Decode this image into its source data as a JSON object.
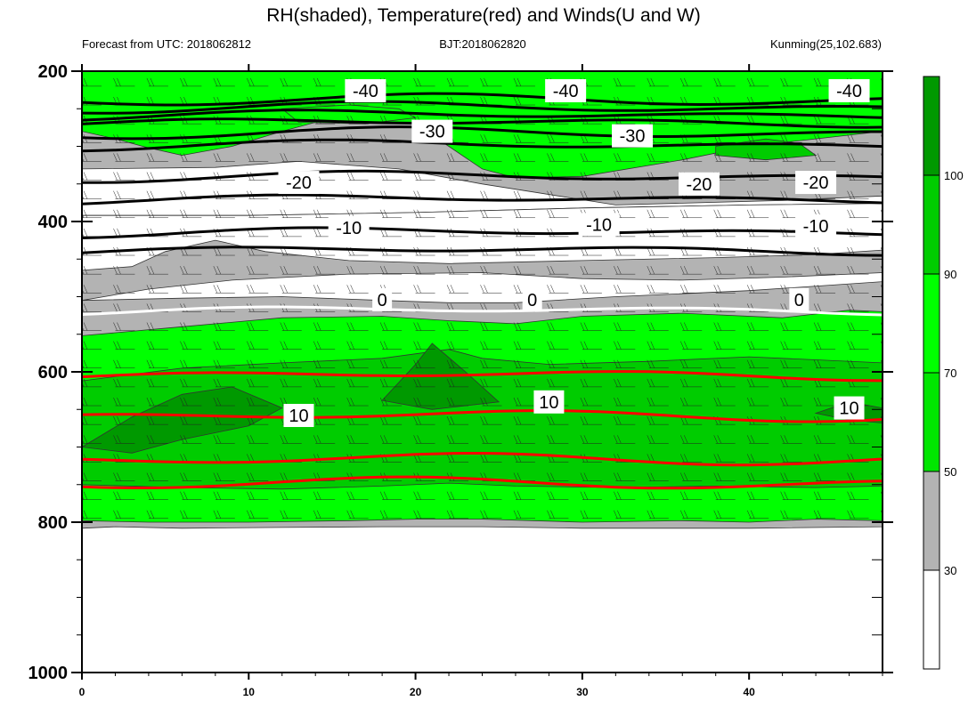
{
  "title": "RH(shaded), Temperature(red) and Winds(U and W)",
  "left_subtitle": "Forecast from UTC: 2018062812",
  "center_subtitle": "BJT:2018062820",
  "right_subtitle": "Kunming(25,102.683)",
  "chart_data": {
    "type": "heatmap",
    "description_fields": "RH shaded, temperature contours, wind barbs",
    "x_ticks": [
      0,
      10,
      20,
      30,
      40
    ],
    "xlim": [
      0,
      48
    ],
    "y_ticks": [
      200,
      400,
      600,
      800,
      1000
    ],
    "ylim": [
      1000,
      200
    ],
    "colorbar": {
      "levels": [
        30,
        50,
        70,
        90,
        100
      ],
      "colors": [
        "#ffffff",
        "#b3b3b3",
        "#00e600",
        "#00ff00",
        "#00cc00",
        "#009900"
      ]
    },
    "rh_fields": [
      {
        "level": "30",
        "color": "#b3b3b3",
        "poly": [
          [
            0,
            808
          ],
          [
            2,
            806
          ],
          [
            6,
            808
          ],
          [
            12,
            807
          ],
          [
            18,
            806
          ],
          [
            24,
            806
          ],
          [
            30,
            808
          ],
          [
            40,
            808
          ],
          [
            48,
            806
          ],
          [
            48,
            200
          ],
          [
            40,
            200
          ],
          [
            32,
            200
          ],
          [
            24,
            200
          ],
          [
            20,
            200
          ],
          [
            14,
            200
          ],
          [
            8,
            200
          ],
          [
            0,
            200
          ]
        ]
      },
      {
        "level": "white-gap-1",
        "color": "#ffffff",
        "poly": [
          [
            0,
            330
          ],
          [
            8,
            328
          ],
          [
            13,
            320
          ],
          [
            19,
            330
          ],
          [
            24,
            350
          ],
          [
            32,
            378
          ],
          [
            42,
            372
          ],
          [
            48,
            366
          ],
          [
            48,
            376
          ],
          [
            40,
            378
          ],
          [
            30,
            382
          ],
          [
            20,
            388
          ],
          [
            10,
            392
          ],
          [
            0,
            392
          ]
        ]
      },
      {
        "level": "white-gap-2",
        "color": "#ffffff",
        "poly": [
          [
            0,
            392
          ],
          [
            10,
            392
          ],
          [
            20,
            388
          ],
          [
            30,
            382
          ],
          [
            40,
            378
          ],
          [
            48,
            376
          ],
          [
            48,
            438
          ],
          [
            44,
            444
          ],
          [
            38,
            448
          ],
          [
            30,
            452
          ],
          [
            22,
            456
          ],
          [
            16,
            452
          ],
          [
            11,
            440
          ],
          [
            8,
            425
          ],
          [
            5,
            440
          ],
          [
            3,
            460
          ],
          [
            0,
            465
          ]
        ]
      },
      {
        "level": "white-gap-3",
        "color": "#ffffff",
        "poly": [
          [
            0,
            505
          ],
          [
            4,
            490
          ],
          [
            9,
            478
          ],
          [
            16,
            470
          ],
          [
            24,
            468
          ],
          [
            30,
            476
          ],
          [
            36,
            478
          ],
          [
            42,
            474
          ],
          [
            48,
            468
          ],
          [
            48,
            480
          ],
          [
            40,
            492
          ],
          [
            32,
            500
          ],
          [
            26,
            508
          ],
          [
            22,
            508
          ],
          [
            18,
            505
          ],
          [
            12,
            500
          ],
          [
            6,
            502
          ]
        ]
      },
      {
        "level": "white-spot",
        "color": "#ffffff",
        "poly": [
          [
            2,
            258
          ],
          [
            4,
            250
          ],
          [
            6,
            258
          ],
          [
            4,
            264
          ]
        ]
      },
      {
        "level": "70",
        "color": "#00ff00",
        "poly": [
          [
            0,
            552
          ],
          [
            6,
            540
          ],
          [
            12,
            528
          ],
          [
            18,
            526
          ],
          [
            22,
            532
          ],
          [
            26,
            536
          ],
          [
            30,
            526
          ],
          [
            36,
            522
          ],
          [
            42,
            528
          ],
          [
            46,
            518
          ],
          [
            48,
            520
          ],
          [
            48,
            798
          ],
          [
            44,
            796
          ],
          [
            40,
            800
          ],
          [
            36,
            798
          ],
          [
            30,
            800
          ],
          [
            24,
            796
          ],
          [
            20,
            796
          ],
          [
            16,
            798
          ],
          [
            10,
            800
          ],
          [
            4,
            800
          ],
          [
            0,
            798
          ]
        ]
      },
      {
        "level": "70-upper",
        "color": "#00ff00",
        "poly": [
          [
            0,
            200
          ],
          [
            24,
            200
          ],
          [
            48,
            200
          ],
          [
            48,
            280
          ],
          [
            44,
            290
          ],
          [
            40,
            300
          ],
          [
            36,
            318
          ],
          [
            30,
            340
          ],
          [
            26,
            342
          ],
          [
            24,
            330
          ],
          [
            22,
            300
          ],
          [
            20,
            270
          ],
          [
            14,
            268
          ],
          [
            12,
            280
          ],
          [
            9,
            300
          ],
          [
            6,
            312
          ],
          [
            4,
            302
          ],
          [
            2,
            290
          ],
          [
            0,
            280
          ]
        ]
      },
      {
        "level": "70-blob",
        "color": "#00ff00",
        "poly": [
          [
            12,
            250
          ],
          [
            16,
            245
          ],
          [
            19,
            250
          ],
          [
            20,
            262
          ],
          [
            17,
            270
          ],
          [
            13,
            268
          ]
        ]
      },
      {
        "level": "90",
        "color": "#00cc00",
        "poly": [
          [
            0,
            612
          ],
          [
            6,
            595
          ],
          [
            12,
            588
          ],
          [
            18,
            582
          ],
          [
            22,
            570
          ],
          [
            24,
            582
          ],
          [
            28,
            590
          ],
          [
            34,
            586
          ],
          [
            40,
            580
          ],
          [
            48,
            588
          ],
          [
            48,
            752
          ],
          [
            44,
            754
          ],
          [
            38,
            752
          ],
          [
            32,
            754
          ],
          [
            26,
            752
          ],
          [
            22,
            748
          ],
          [
            18,
            752
          ],
          [
            12,
            756
          ],
          [
            6,
            754
          ],
          [
            0,
            750
          ]
        ]
      },
      {
        "level": "90-upper",
        "color": "#00cc00",
        "poly": [
          [
            38,
            300
          ],
          [
            41,
            290
          ],
          [
            43,
            296
          ],
          [
            44,
            312
          ],
          [
            41,
            318
          ],
          [
            38,
            312
          ]
        ]
      },
      {
        "level": "100-a",
        "color": "#009900",
        "poly": [
          [
            0,
            700
          ],
          [
            3,
            660
          ],
          [
            6,
            630
          ],
          [
            9,
            620
          ],
          [
            12,
            648
          ],
          [
            10,
            672
          ],
          [
            6,
            690
          ],
          [
            3,
            708
          ]
        ]
      },
      {
        "level": "100-b",
        "color": "#009900",
        "poly": [
          [
            18,
            638
          ],
          [
            20,
            590
          ],
          [
            21,
            562
          ],
          [
            23,
            600
          ],
          [
            25,
            640
          ],
          [
            21,
            650
          ]
        ]
      },
      {
        "level": "100-c",
        "color": "#009900",
        "poly": [
          [
            44,
            655
          ],
          [
            46,
            640
          ],
          [
            48,
            648
          ],
          [
            48,
            668
          ],
          [
            46,
            664
          ]
        ]
      }
    ],
    "temperature_contours": [
      {
        "value": -40,
        "color": "#000000",
        "label_positions": [
          [
            17,
            226
          ],
          [
            29,
            226
          ],
          [
            46,
            226
          ]
        ],
        "y_levels": [
          238,
          248,
          258,
          268
        ]
      },
      {
        "value": -30,
        "color": "#000000",
        "label_positions": [
          [
            21,
            280
          ],
          [
            33,
            286
          ]
        ],
        "y_levels": [
          282,
          298
        ]
      },
      {
        "value": -20,
        "color": "#000000",
        "label_positions": [
          [
            13,
            348
          ],
          [
            37,
            350
          ],
          [
            44,
            348
          ]
        ],
        "y_levels": [
          340,
          370
        ]
      },
      {
        "value": -10,
        "color": "#000000",
        "label_positions": [
          [
            16,
            408
          ],
          [
            31,
            404
          ],
          [
            44,
            406
          ]
        ],
        "y_levels": [
          414,
          438
        ]
      },
      {
        "value": 0,
        "color": "#ffffff",
        "label_positions": [
          [
            18,
            504
          ],
          [
            27,
            504
          ],
          [
            43,
            504
          ]
        ],
        "y_levels": [
          518
        ]
      },
      {
        "value": 10,
        "color": "#ff0000",
        "label_positions": [
          [
            13,
            658
          ],
          [
            28,
            640
          ],
          [
            46,
            648
          ]
        ],
        "y_levels": [
          604,
          658,
          716,
          748
        ]
      }
    ],
    "contour_labels": [
      "-40",
      "-40",
      "-40",
      "-30",
      "-30",
      "-20",
      "-20",
      "-20",
      "-10",
      "-10",
      "-10",
      "0",
      "0",
      "0",
      "10",
      "10",
      "10"
    ]
  }
}
